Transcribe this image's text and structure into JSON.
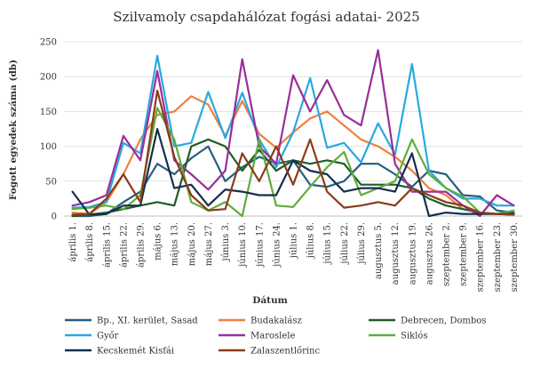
{
  "chart_data": {
    "type": "line",
    "title": "Szilvamoly csapdahálózat fogási adatai- 2025",
    "xlabel": "Dátum",
    "ylabel": "Fogott egyedek száma (db)",
    "ylim": [
      0,
      250
    ],
    "yticks": [
      0,
      50,
      100,
      150,
      200,
      250
    ],
    "grid": true,
    "legend_position": "bottom",
    "categories": [
      "április 1.",
      "április 8.",
      "április 15.",
      "április 22.",
      "április 29.",
      "május 6.",
      "május 13.",
      "május 20.",
      "május 27.",
      "június 3.",
      "június 10.",
      "június 17.",
      "június 24.",
      "július 1.",
      "július 8.",
      "július 15.",
      "július 22.",
      "július 29.",
      "augusztus 5.",
      "augusztus 12.",
      "augusztus 19.",
      "augusztus 26.",
      "szeptember 2.",
      "szeptember 9.",
      "szeptember 16.",
      "szeptember 23.",
      "szeptember 30."
    ],
    "series": [
      {
        "name": "Bp., XI. kerület, Sasad",
        "color": "#255e7e",
        "values": [
          0,
          0,
          3,
          20,
          35,
          75,
          60,
          83,
          100,
          50,
          70,
          85,
          75,
          80,
          45,
          42,
          50,
          75,
          75,
          60,
          42,
          65,
          60,
          30,
          28,
          8,
          5
        ]
      },
      {
        "name": "Budakalász",
        "color": "#ef7f3c",
        "values": [
          5,
          3,
          20,
          60,
          110,
          145,
          150,
          172,
          160,
          115,
          165,
          118,
          98,
          120,
          140,
          150,
          130,
          110,
          100,
          85,
          65,
          40,
          30,
          10,
          5,
          3,
          2
        ]
      },
      {
        "name": "Debrecen, Dombos",
        "color": "#1e5c2a",
        "values": [
          0,
          2,
          5,
          10,
          15,
          20,
          15,
          100,
          110,
          100,
          65,
          95,
          65,
          80,
          75,
          80,
          75,
          45,
          45,
          45,
          40,
          25,
          15,
          10,
          5,
          3,
          2
        ]
      },
      {
        "name": "Győr",
        "color": "#28a9df",
        "values": [
          12,
          13,
          20,
          105,
          90,
          230,
          100,
          105,
          178,
          112,
          177,
          110,
          70,
          120,
          198,
          98,
          105,
          77,
          133,
          88,
          218,
          65,
          40,
          25,
          25,
          15,
          15
        ]
      },
      {
        "name": "Maroslele",
        "color": "#9a2d9a",
        "values": [
          15,
          20,
          30,
          115,
          80,
          208,
          80,
          60,
          38,
          65,
          225,
          100,
          75,
          202,
          150,
          195,
          145,
          130,
          238,
          75,
          35,
          35,
          35,
          15,
          0,
          30,
          15
        ]
      },
      {
        "name": "Siklós",
        "color": "#5fad3d",
        "values": [
          10,
          12,
          15,
          10,
          30,
          155,
          110,
          20,
          8,
          20,
          0,
          110,
          15,
          13,
          42,
          70,
          92,
          30,
          40,
          50,
          110,
          60,
          40,
          28,
          5,
          3,
          8
        ]
      },
      {
        "name": "Kecskemét Kisfái",
        "color": "#152e4e",
        "values": [
          35,
          2,
          3,
          15,
          15,
          125,
          40,
          45,
          15,
          38,
          35,
          30,
          30,
          80,
          65,
          60,
          35,
          40,
          40,
          35,
          90,
          0,
          5,
          3,
          3,
          3,
          3
        ]
      },
      {
        "name": "Zalaszentlőrinc",
        "color": "#8a3c16",
        "values": [
          2,
          3,
          25,
          60,
          20,
          180,
          85,
          30,
          8,
          10,
          90,
          50,
          100,
          45,
          110,
          35,
          12,
          15,
          20,
          15,
          40,
          30,
          20,
          15,
          5,
          3,
          2
        ]
      }
    ]
  }
}
